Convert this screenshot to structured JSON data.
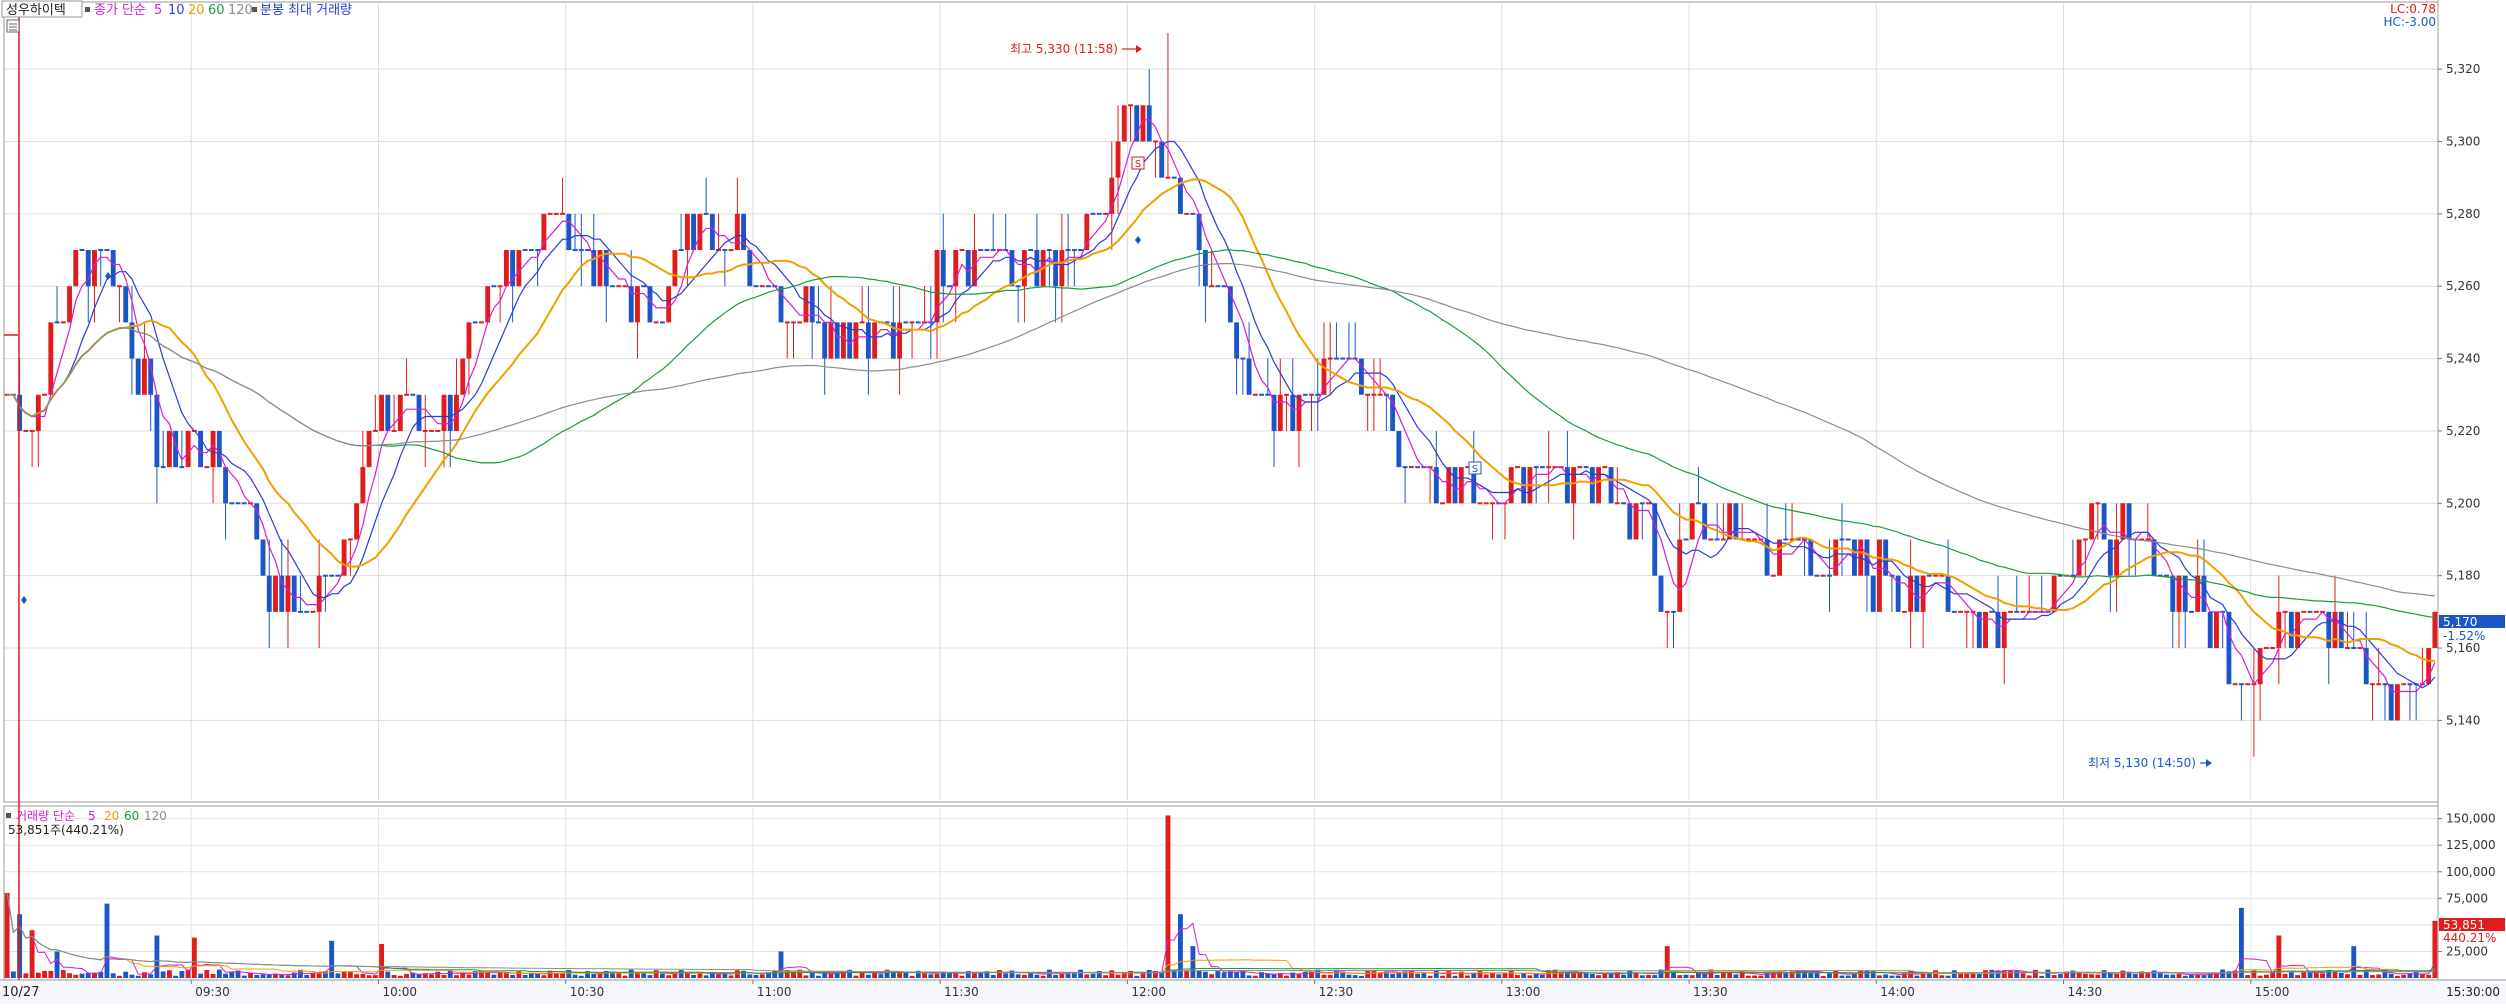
{
  "header": {
    "stock_name": "성우하이텍",
    "price_label": "종가 단순",
    "ma_periods": [
      "5",
      "10",
      "20",
      "60",
      "120"
    ],
    "extra_label": "분봉 최대 거래량",
    "lc_label": "LC:0.78",
    "hc_label": "HC:-3.00"
  },
  "volume_header": {
    "label": "거래량 단순",
    "ma_periods": [
      "5",
      "20",
      "60",
      "120"
    ],
    "current_text": "53,851주(440.21%)"
  },
  "annotations": {
    "high_text": "최고 5,330 (11:58)",
    "low_text": "최저 5,130 (14:50)",
    "marker_letter": "S",
    "marker_letter_2": "S"
  },
  "current": {
    "price": "5,170",
    "change_pct": "-1.52%",
    "volume": "53,851",
    "volume_pct": "440.21%"
  },
  "date_label": "10/27",
  "end_time_label": "15:30:00",
  "colors": {
    "up": "#e01c1c",
    "down": "#1c55c8",
    "ma5": "#d41ed4",
    "ma10": "#2a3cd8",
    "ma20": "#f0a000",
    "ma60": "#1c9c3c",
    "ma120": "#8c8c8c"
  },
  "chart_data": [
    {
      "type": "candlestick",
      "title": "성우하이텍",
      "x_ticks": [
        "09:30",
        "10:00",
        "10:30",
        "11:00",
        "11:30",
        "12:00",
        "12:30",
        "13:00",
        "13:30",
        "14:00",
        "14:30",
        "15:00"
      ],
      "y_ticks": [
        5140,
        5160,
        5180,
        5200,
        5220,
        5240,
        5260,
        5280,
        5300,
        5320
      ],
      "y_tick_labels": [
        "5,140",
        "5,160",
        "5,180",
        "5,200",
        "5,220",
        "5,240",
        "5,260",
        "5,280",
        "5,300",
        "5,320"
      ],
      "ylim": [
        5118,
        5338
      ],
      "x_range_minutes": [
        0,
        390
      ],
      "close_anchors": [
        [
          0,
          5230
        ],
        [
          4,
          5220
        ],
        [
          8,
          5250
        ],
        [
          14,
          5275
        ],
        [
          20,
          5245
        ],
        [
          24,
          5215
        ],
        [
          30,
          5215
        ],
        [
          38,
          5200
        ],
        [
          44,
          5170
        ],
        [
          48,
          5170
        ],
        [
          54,
          5190
        ],
        [
          58,
          5215
        ],
        [
          64,
          5230
        ],
        [
          68,
          5220
        ],
        [
          74,
          5240
        ],
        [
          80,
          5265
        ],
        [
          88,
          5280
        ],
        [
          96,
          5260
        ],
        [
          104,
          5255
        ],
        [
          112,
          5280
        ],
        [
          120,
          5265
        ],
        [
          126,
          5255
        ],
        [
          134,
          5250
        ],
        [
          144,
          5245
        ],
        [
          152,
          5270
        ],
        [
          160,
          5265
        ],
        [
          168,
          5265
        ],
        [
          176,
          5280
        ],
        [
          180,
          5310
        ],
        [
          184,
          5300
        ],
        [
          188,
          5280
        ],
        [
          192,
          5265
        ],
        [
          200,
          5230
        ],
        [
          206,
          5225
        ],
        [
          212,
          5240
        ],
        [
          218,
          5235
        ],
        [
          224,
          5215
        ],
        [
          232,
          5205
        ],
        [
          240,
          5205
        ],
        [
          248,
          5210
        ],
        [
          256,
          5205
        ],
        [
          262,
          5195
        ],
        [
          266,
          5170
        ],
        [
          270,
          5195
        ],
        [
          276,
          5190
        ],
        [
          284,
          5185
        ],
        [
          292,
          5185
        ],
        [
          300,
          5180
        ],
        [
          310,
          5175
        ],
        [
          318,
          5165
        ],
        [
          326,
          5175
        ],
        [
          334,
          5190
        ],
        [
          342,
          5190
        ],
        [
          352,
          5170
        ],
        [
          358,
          5155
        ],
        [
          364,
          5165
        ],
        [
          370,
          5175
        ],
        [
          376,
          5160
        ],
        [
          380,
          5145
        ],
        [
          386,
          5150
        ],
        [
          389,
          5170
        ]
      ],
      "extremes": [
        [
          186,
          5330
        ],
        [
          360,
          5130
        ]
      ],
      "current_price": 5170,
      "moving_averages": [
        {
          "name": "5",
          "period": 5
        },
        {
          "name": "10",
          "period": 10
        },
        {
          "name": "20",
          "period": 20
        },
        {
          "name": "60",
          "period": 60
        },
        {
          "name": "120",
          "period": 120
        }
      ]
    },
    {
      "type": "bar",
      "title": "거래량",
      "y_ticks": [
        25000,
        50000,
        75000,
        100000,
        125000,
        150000
      ],
      "y_tick_labels": [
        "25,000",
        "50,000",
        "75,000",
        "100,000",
        "125,000",
        "150,000"
      ],
      "ylim": [
        0,
        160000
      ],
      "spikes": [
        [
          0,
          80000
        ],
        [
          2,
          60000
        ],
        [
          4,
          45000
        ],
        [
          8,
          25000
        ],
        [
          16,
          70000
        ],
        [
          24,
          40000
        ],
        [
          30,
          38000
        ],
        [
          52,
          35000
        ],
        [
          60,
          32000
        ],
        [
          124,
          25000
        ],
        [
          186,
          153000
        ],
        [
          188,
          60000
        ],
        [
          190,
          30000
        ],
        [
          266,
          30000
        ],
        [
          358,
          66000
        ],
        [
          364,
          40000
        ],
        [
          376,
          30000
        ],
        [
          389,
          53851
        ]
      ],
      "base_volume": 5000
    }
  ]
}
